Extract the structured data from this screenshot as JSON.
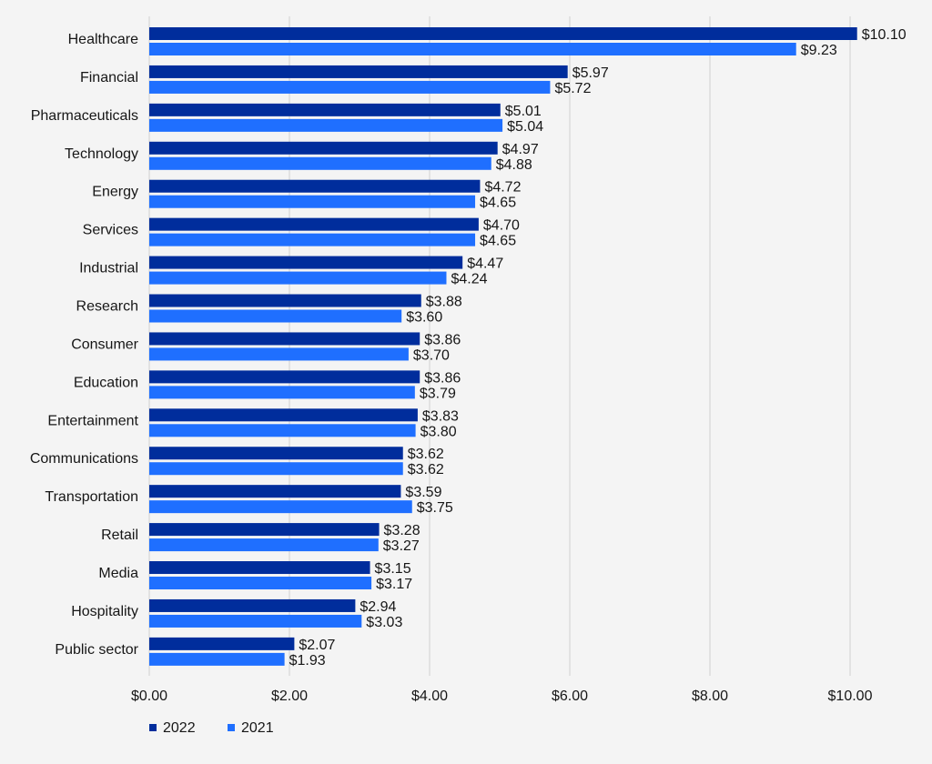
{
  "chart_data": {
    "type": "bar",
    "orientation": "horizontal",
    "title": "",
    "xlabel": "",
    "ylabel": "",
    "xlim": [
      0,
      10
    ],
    "grid": true,
    "legend_position": "bottom-left",
    "categories": [
      "Healthcare",
      "Financial",
      "Pharmaceuticals",
      "Technology",
      "Energy",
      "Services",
      "Industrial",
      "Research",
      "Consumer",
      "Education",
      "Entertainment",
      "Communications",
      "Transportation",
      "Retail",
      "Media",
      "Hospitality",
      "Public sector"
    ],
    "x_ticks": [
      "$0.00",
      "$2.00",
      "$4.00",
      "$6.00",
      "$8.00",
      "$10.00"
    ],
    "x_tick_values": [
      0,
      2,
      4,
      6,
      8,
      10
    ],
    "series": [
      {
        "name": "2022",
        "color": "#002d9c",
        "values": [
          10.1,
          5.97,
          5.01,
          4.97,
          4.72,
          4.7,
          4.47,
          3.88,
          3.86,
          3.86,
          3.83,
          3.62,
          3.59,
          3.28,
          3.15,
          2.94,
          2.07
        ],
        "labels": [
          "$10.10",
          "$5.97",
          "$5.01",
          "$4.97",
          "$4.72",
          "$4.70",
          "$4.47",
          "$3.88",
          "$3.86",
          "$3.86",
          "$3.83",
          "$3.62",
          "$3.59",
          "$3.28",
          "$3.15",
          "$2.94",
          "$2.07"
        ]
      },
      {
        "name": "2021",
        "color": "#1f6fff",
        "values": [
          9.23,
          5.72,
          5.04,
          4.88,
          4.65,
          4.65,
          4.24,
          3.6,
          3.7,
          3.79,
          3.8,
          3.62,
          3.75,
          3.27,
          3.17,
          3.03,
          1.93
        ],
        "labels": [
          "$9.23",
          "$5.72",
          "$5.04",
          "$4.88",
          "$4.65",
          "$4.65",
          "$4.24",
          "$3.60",
          "$3.70",
          "$3.79",
          "$3.80",
          "$3.62",
          "$3.75",
          "$3.27",
          "$3.17",
          "$3.03",
          "$1.93"
        ]
      }
    ]
  },
  "colors": {
    "background": "#f4f4f4",
    "grid": "#d0d0d0",
    "text": "#161616"
  }
}
